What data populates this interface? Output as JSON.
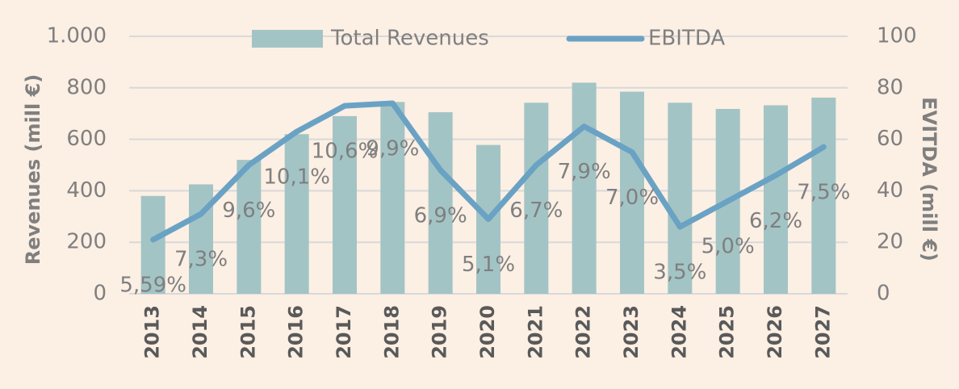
{
  "chart_data": {
    "type": "bar-line",
    "categories": [
      "2013",
      "2014",
      "2015",
      "2016",
      "2017",
      "2018",
      "2019",
      "2020",
      "2021",
      "2022",
      "2023",
      "2024",
      "2025",
      "2026",
      "2027"
    ],
    "series": [
      {
        "name": "Total Revenues",
        "type": "bar",
        "color": "#a3c4c5",
        "axis": "y",
        "values": [
          380,
          425,
          520,
          620,
          690,
          745,
          705,
          578,
          742,
          820,
          785,
          742,
          718,
          732,
          762
        ]
      },
      {
        "name": "EBITDA",
        "type": "line",
        "color": "#6aa2c4",
        "axis": "y2",
        "values": [
          21,
          31,
          50,
          63,
          73,
          74,
          48,
          29,
          50,
          65,
          55,
          26,
          36,
          46,
          57
        ],
        "data_labels": {
          "values": [
            5.59,
            7.3,
            9.6,
            10.1,
            10.6,
            9.9,
            6.9,
            5.1,
            6.7,
            7.9,
            7.0,
            3.5,
            5.0,
            6.2,
            7.5
          ],
          "value_labels": [
            "5,59%",
            "7,3%",
            "9,6%",
            "10,1%",
            "10,6%",
            "9,9%",
            "6,9%",
            "5,1%",
            "6,7%",
            "7,9%",
            "7,0%",
            "3,5%",
            "5,0%",
            "6,2%",
            "7,5%"
          ]
        }
      }
    ],
    "ylabel": "Revenues (mill €)",
    "y2label": "EVITDA (mill €)",
    "ylim": [
      0,
      1000
    ],
    "yticks": [
      0,
      200,
      400,
      600,
      800,
      {
        "value": 1000,
        "label": "1.000"
      }
    ],
    "y2lim": [
      0,
      100
    ],
    "y2ticks": [
      0,
      20,
      40,
      60,
      80,
      100
    ],
    "grid": true,
    "legend": "top"
  }
}
